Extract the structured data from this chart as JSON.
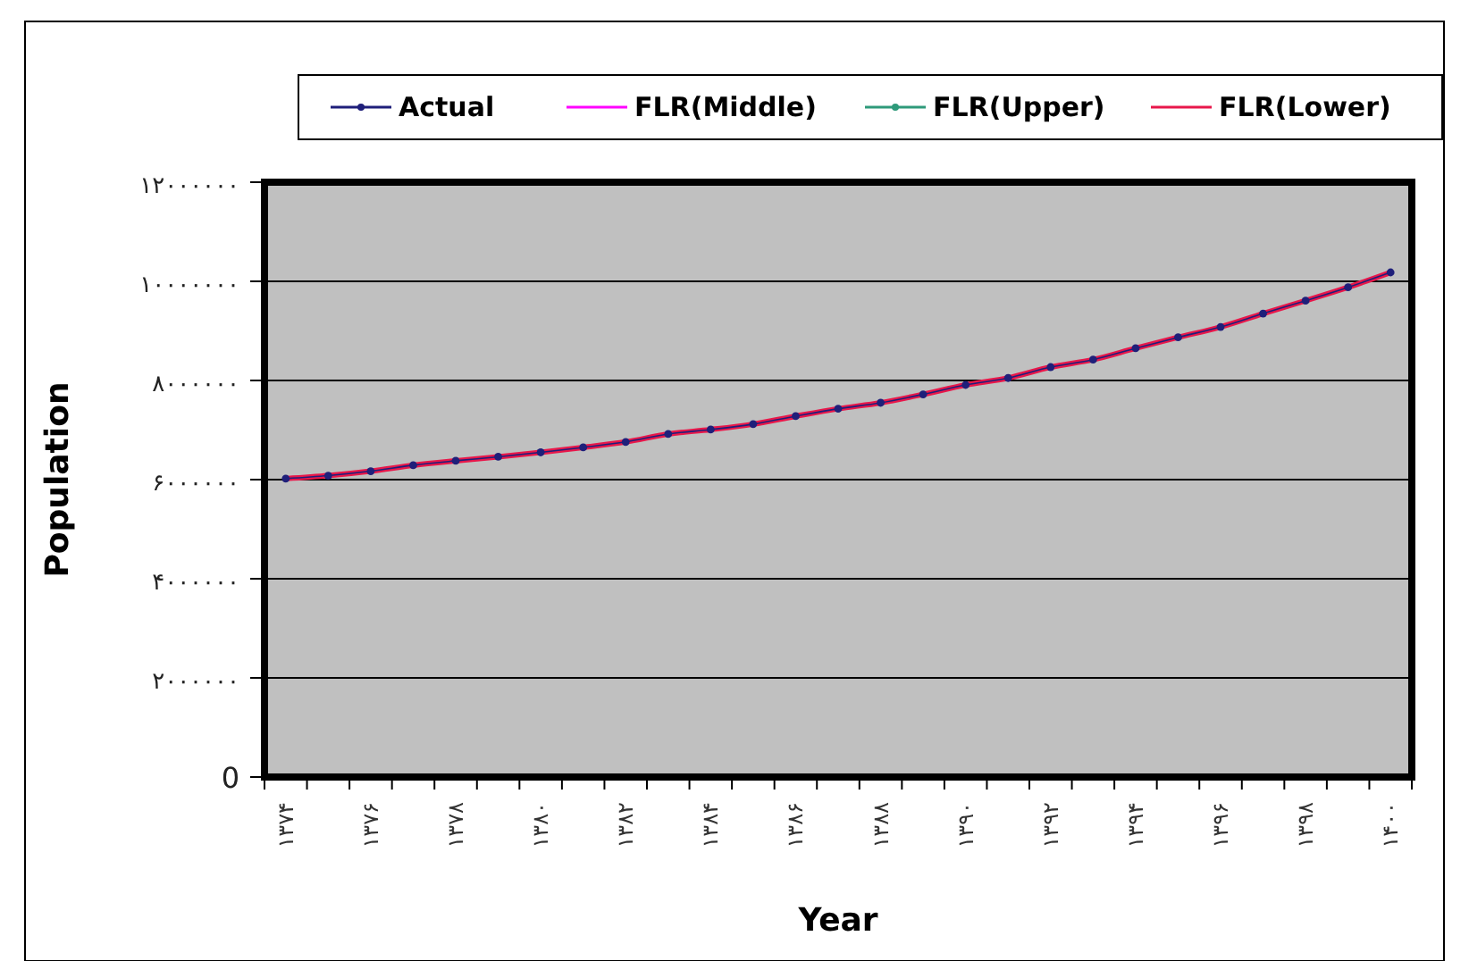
{
  "chart_data": {
    "type": "line",
    "xlabel": "Year",
    "ylabel": "Population",
    "categories": [
      "۱۳۷۴",
      null,
      "۱۳۷۶",
      null,
      "۱۳۷۸",
      null,
      "۱۳۸۰",
      null,
      "۱۳۸۲",
      null,
      "۱۳۸۴",
      null,
      "۱۳۸۶",
      null,
      "۱۳۸۸",
      null,
      "۱۳۹۰",
      null,
      "۱۳۹۲",
      null,
      "۱۳۹۴",
      null,
      "۱۳۹۶",
      null,
      "۱۳۹۸",
      null,
      "۱۴۰۰"
    ],
    "series": [
      {
        "name": "Actual",
        "color": "#1f1f7a",
        "marker": "circle",
        "values": [
          6020000,
          6080000,
          6170000,
          6290000,
          6380000,
          6460000,
          6550000,
          6650000,
          6760000,
          6920000,
          7010000,
          7120000,
          7280000,
          7430000,
          7550000,
          7720000,
          7910000,
          8050000,
          8270000,
          8420000,
          8650000,
          8870000,
          9080000,
          9350000,
          9610000,
          9880000,
          10180000
        ]
      },
      {
        "name": "FLR(Middle)",
        "color": "#ff00ff",
        "marker": "none",
        "values": [
          null,
          null,
          null,
          null,
          null,
          null,
          null,
          null,
          null,
          null,
          null,
          null,
          null,
          null,
          null,
          null,
          null,
          null,
          null,
          null,
          null,
          null,
          null,
          null,
          null,
          null,
          null
        ]
      },
      {
        "name": "FLR(Upper)",
        "color": "#2e9a7a",
        "marker": "circle",
        "values": [
          null,
          null,
          null,
          null,
          null,
          null,
          null,
          null,
          null,
          null,
          null,
          null,
          null,
          null,
          null,
          null,
          null,
          null,
          null,
          null,
          null,
          null,
          null,
          null,
          null,
          null,
          null
        ]
      },
      {
        "name": "FLR(Lower)",
        "color": "#e8174a",
        "marker": "none",
        "values": [
          6020000,
          6080000,
          6170000,
          6290000,
          6380000,
          6460000,
          6550000,
          6650000,
          6760000,
          6920000,
          7010000,
          7120000,
          7280000,
          7430000,
          7550000,
          7720000,
          7910000,
          8050000,
          8270000,
          8420000,
          8650000,
          8870000,
          9080000,
          9350000,
          9610000,
          9880000,
          10180000
        ]
      }
    ],
    "ylim": [
      0,
      12000000
    ],
    "yticks": [
      0,
      {
        "value": 2000000,
        "label": "۲۰۰۰۰۰۰"
      },
      {
        "value": 4000000,
        "label": "۴۰۰۰۰۰۰"
      },
      {
        "value": 6000000,
        "label": "۶۰۰۰۰۰۰"
      },
      {
        "value": 8000000,
        "label": "۸۰۰۰۰۰۰"
      },
      {
        "value": 10000000,
        "label": "۱۰۰۰۰۰۰۰"
      },
      {
        "value": 12000000,
        "label": "۱۲۰۰۰۰۰۰"
      }
    ],
    "grid": "y",
    "legend": "top",
    "line_style": "solid"
  }
}
